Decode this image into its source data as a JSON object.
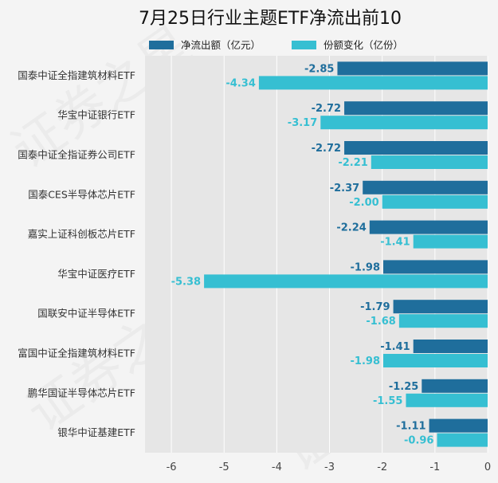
{
  "chart_data": {
    "type": "bar",
    "orientation": "horizontal",
    "title": "7月25日行业主题ETF净流出前10",
    "categories": [
      "国泰中证全指建筑材料ETF",
      "华宝中证银行ETF",
      "国泰中证全指证券公司ETF",
      "国泰CES半导体芯片ETF",
      "嘉实上证科创板芯片ETF",
      "华宝中证医疗ETF",
      "国联安中证半导体ETF",
      "富国中证全指建筑材料ETF",
      "鹏华国证半导体芯片ETF",
      "银华中证基建ETF"
    ],
    "series": [
      {
        "name": "净流出额（亿元）",
        "color": "#1f6e9c",
        "values": [
          -2.85,
          -2.72,
          -2.72,
          -2.37,
          -2.24,
          -1.98,
          -1.79,
          -1.41,
          -1.25,
          -1.11
        ],
        "labels": [
          "-2.85",
          "-2.72",
          "-2.72",
          "-2.37",
          "-2.24",
          "-1.98",
          "-1.79",
          "-1.41",
          "-1.25",
          "-1.11"
        ]
      },
      {
        "name": "份额变化（亿份）",
        "color": "#36bfd2",
        "values": [
          -4.34,
          -3.17,
          -2.21,
          -2.0,
          -1.41,
          -5.38,
          -1.68,
          -1.98,
          -1.55,
          -0.96
        ],
        "labels": [
          "-4.34",
          "-3.17",
          "-2.21",
          "-2.00",
          "-1.41",
          "-5.38",
          "-1.68",
          "-1.98",
          "-1.55",
          "-0.96"
        ]
      }
    ],
    "xlim": [
      -6.5,
      0
    ],
    "xticks": [
      "-6",
      "-5",
      "-4",
      "-3",
      "-2",
      "-1",
      "0"
    ],
    "xtick_values": [
      -6,
      -5,
      -4,
      -3,
      -2,
      -1,
      0
    ],
    "grid": true,
    "legend_position": "top-center",
    "watermark": "证券之星"
  }
}
